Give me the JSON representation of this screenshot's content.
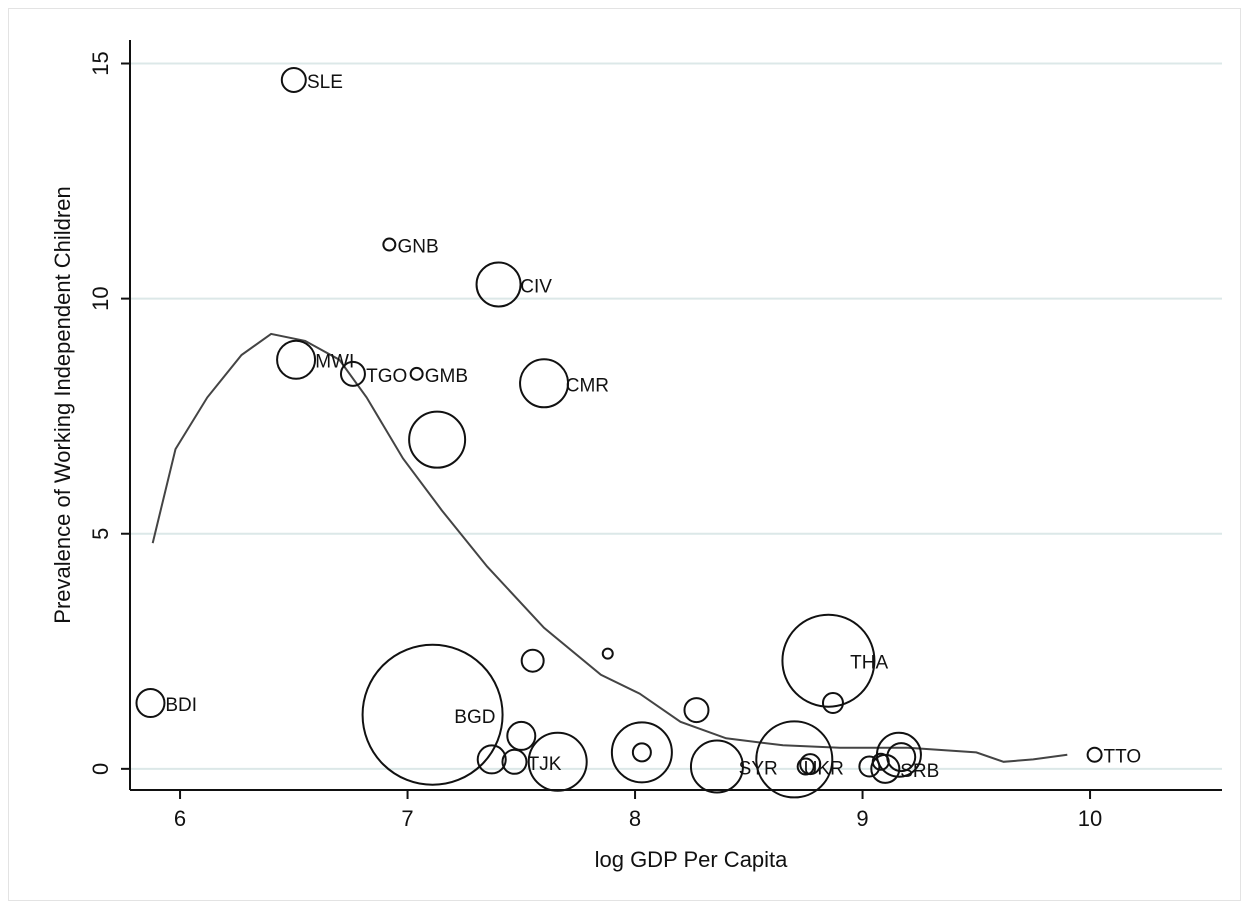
{
  "chart_data": {
    "type": "scatter",
    "title": "",
    "xlabel": "log GDP Per Capita",
    "ylabel": "Prevalence of Working Independent Children",
    "xlim": [
      5.78,
      10.58
    ],
    "ylim": [
      -0.45,
      15.5
    ],
    "x_ticks": [
      6,
      7,
      8,
      9,
      10
    ],
    "y_ticks": [
      0,
      5,
      10,
      15
    ],
    "grid": "horizontal",
    "colors": {
      "marker": "#111111",
      "gridline": "#dce8e8",
      "fit_line": "#444444",
      "axis": "#111111"
    },
    "points": [
      {
        "x": 6.5,
        "y": 14.65,
        "r": 12,
        "label": "SLE"
      },
      {
        "x": 6.92,
        "y": 11.15,
        "r": 6,
        "label": "GNB"
      },
      {
        "x": 7.4,
        "y": 10.3,
        "r": 22,
        "label": "CIV"
      },
      {
        "x": 6.51,
        "y": 8.7,
        "r": 19,
        "label": "MWI"
      },
      {
        "x": 6.76,
        "y": 8.4,
        "r": 12,
        "label": "TGO"
      },
      {
        "x": 7.04,
        "y": 8.4,
        "r": 6,
        "label": "GMB"
      },
      {
        "x": 7.6,
        "y": 8.2,
        "r": 24,
        "label": "CMR"
      },
      {
        "x": 7.13,
        "y": 7.0,
        "r": 28,
        "label": ""
      },
      {
        "x": 5.87,
        "y": 1.4,
        "r": 14,
        "label": "BDI"
      },
      {
        "x": 7.11,
        "y": 1.15,
        "r": 70,
        "label": "BGD"
      },
      {
        "x": 7.55,
        "y": 2.3,
        "r": 11,
        "label": ""
      },
      {
        "x": 7.88,
        "y": 2.45,
        "r": 5,
        "label": ""
      },
      {
        "x": 7.5,
        "y": 0.7,
        "r": 14,
        "label": ""
      },
      {
        "x": 7.37,
        "y": 0.2,
        "r": 14,
        "label": ""
      },
      {
        "x": 7.47,
        "y": 0.15,
        "r": 12,
        "label": "TJK"
      },
      {
        "x": 7.66,
        "y": 0.15,
        "r": 29,
        "label": ""
      },
      {
        "x": 8.03,
        "y": 0.35,
        "r": 30,
        "label": ""
      },
      {
        "x": 8.03,
        "y": 0.35,
        "r": 9,
        "label": ""
      },
      {
        "x": 8.27,
        "y": 1.25,
        "r": 12,
        "label": ""
      },
      {
        "x": 8.36,
        "y": 0.05,
        "r": 26,
        "label": "SYR"
      },
      {
        "x": 8.7,
        "y": 0.2,
        "r": 38,
        "label": ""
      },
      {
        "x": 8.77,
        "y": 0.1,
        "r": 10,
        "label": ""
      },
      {
        "x": 8.75,
        "y": 0.05,
        "r": 8,
        "label": "UKR"
      },
      {
        "x": 8.85,
        "y": 2.3,
        "r": 46,
        "label": "THA"
      },
      {
        "x": 8.87,
        "y": 1.4,
        "r": 10,
        "label": ""
      },
      {
        "x": 9.03,
        "y": 0.05,
        "r": 10,
        "label": ""
      },
      {
        "x": 9.08,
        "y": 0.15,
        "r": 8,
        "label": ""
      },
      {
        "x": 9.1,
        "y": 0.0,
        "r": 14,
        "label": "SRB"
      },
      {
        "x": 9.16,
        "y": 0.3,
        "r": 22,
        "label": ""
      },
      {
        "x": 9.17,
        "y": 0.25,
        "r": 14,
        "label": ""
      },
      {
        "x": 10.02,
        "y": 0.3,
        "r": 7,
        "label": "TTO"
      }
    ],
    "fit_line": {
      "x": [
        5.88,
        5.98,
        6.12,
        6.27,
        6.4,
        6.55,
        6.7,
        6.82,
        6.98,
        7.15,
        7.35,
        7.6,
        7.85,
        8.02,
        8.2,
        8.4,
        8.65,
        8.9,
        9.2,
        9.5,
        9.62,
        9.75,
        9.9
      ],
      "y": [
        4.8,
        6.8,
        7.9,
        8.8,
        9.25,
        9.1,
        8.7,
        7.9,
        6.6,
        5.5,
        4.3,
        3.0,
        2.0,
        1.6,
        1.0,
        0.65,
        0.5,
        0.45,
        0.45,
        0.35,
        0.15,
        0.2,
        0.3
      ]
    }
  }
}
